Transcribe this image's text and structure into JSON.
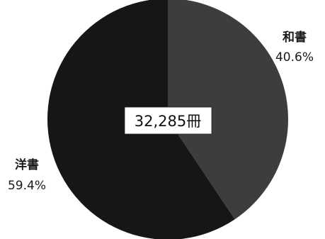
{
  "chart_data": {
    "type": "pie",
    "title": "",
    "total_label": "32,285冊",
    "slices": [
      {
        "label": "和書",
        "percent_label": "40.6%",
        "value": 40.6,
        "color": "#3d3d3d"
      },
      {
        "label": "洋書",
        "percent_label": "59.4%",
        "value": 59.4,
        "color": "#161616"
      }
    ],
    "start_angle_deg": 0,
    "direction": "clockwise",
    "legend": "none"
  }
}
